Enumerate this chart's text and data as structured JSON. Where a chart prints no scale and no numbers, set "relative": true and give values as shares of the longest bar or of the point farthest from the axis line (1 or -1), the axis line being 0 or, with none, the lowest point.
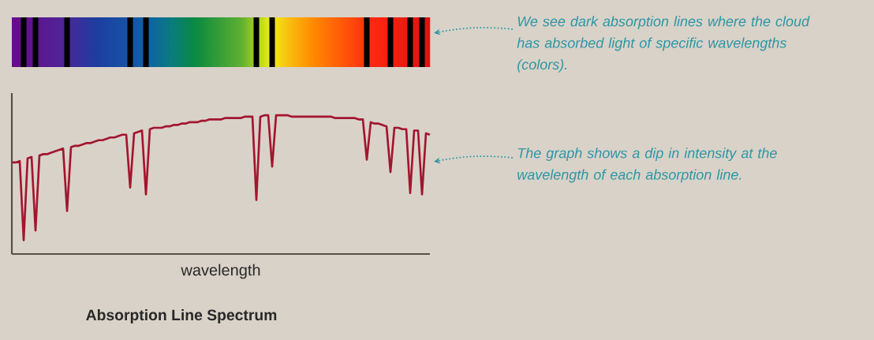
{
  "chart_data": {
    "type": "line",
    "title": "Absorption Line Spectrum",
    "xlabel": "wavelength",
    "relative": true,
    "color": "#a3152f",
    "categories": [
      null,
      null,
      null,
      null,
      null,
      null,
      null,
      null,
      null,
      null,
      null,
      null,
      null,
      null,
      null,
      null,
      null,
      null,
      null,
      null,
      null,
      null,
      null,
      null,
      null,
      null,
      null,
      null,
      null,
      null,
      null,
      null,
      null,
      null,
      null,
      null,
      null,
      null,
      null,
      null,
      null,
      null,
      null,
      null,
      null,
      null,
      null,
      null,
      null,
      null,
      null,
      null,
      null,
      null,
      null,
      null,
      null,
      null,
      null,
      null,
      null,
      null,
      null,
      null,
      null,
      null,
      null,
      null,
      null,
      null,
      null,
      null,
      null,
      null,
      null,
      null,
      null,
      null,
      null,
      null,
      null,
      null,
      null,
      null,
      null,
      null,
      null,
      null,
      null,
      null,
      null,
      null,
      null,
      null,
      null,
      null,
      null,
      null,
      null,
      null,
      null,
      null,
      null,
      null,
      null,
      null,
      null
    ],
    "values": [
      0.66,
      0.66,
      0.67,
      0.1,
      0.69,
      0.7,
      0.17,
      0.71,
      0.72,
      0.72,
      0.73,
      0.74,
      0.75,
      0.76,
      0.31,
      0.77,
      0.78,
      0.78,
      0.79,
      0.8,
      0.8,
      0.81,
      0.82,
      0.82,
      0.83,
      0.84,
      0.84,
      0.85,
      0.86,
      0.86,
      0.48,
      0.87,
      0.88,
      0.89,
      0.43,
      0.9,
      0.91,
      0.91,
      0.91,
      0.92,
      0.92,
      0.93,
      0.93,
      0.94,
      0.94,
      0.95,
      0.95,
      0.95,
      0.96,
      0.96,
      0.97,
      0.97,
      0.97,
      0.97,
      0.98,
      0.98,
      0.98,
      0.98,
      0.98,
      0.99,
      0.99,
      0.99,
      0.39,
      0.99,
      1.0,
      1.0,
      0.63,
      1.0,
      1.0,
      1.0,
      1.0,
      0.99,
      0.99,
      0.99,
      0.99,
      0.99,
      0.99,
      0.99,
      0.99,
      0.99,
      0.99,
      0.99,
      0.98,
      0.98,
      0.98,
      0.98,
      0.98,
      0.98,
      0.97,
      0.97,
      0.68,
      0.95,
      0.94,
      0.94,
      0.93,
      0.92,
      0.59,
      0.91,
      0.91,
      0.9,
      0.9,
      0.44,
      0.89,
      0.89,
      0.43,
      0.87,
      0.86
    ],
    "annotations": [
      "We see dark absorption lines where the cloud has absorbed light of specific wavelengths (colors).",
      "The graph shows a dip in intensity at the wavelength of each absorption line."
    ]
  }
}
